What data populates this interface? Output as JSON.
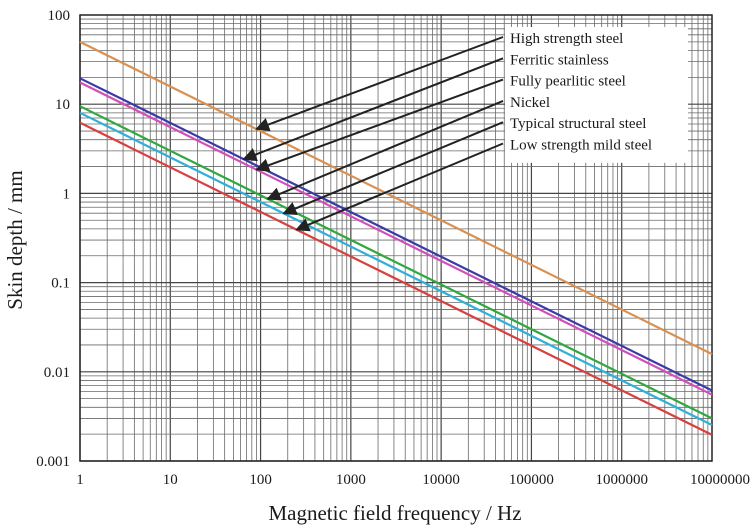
{
  "chart_data": {
    "type": "line",
    "xlabel": "Magnetic field frequency / Hz",
    "ylabel": "Skin depth / mm",
    "x_scale": "log",
    "y_scale": "log",
    "xlim": [
      1,
      10000000
    ],
    "ylim": [
      0.001,
      100
    ],
    "x_ticks": [
      "1",
      "10",
      "100",
      "1000",
      "10000",
      "100000",
      "1000000",
      "10000000"
    ],
    "y_ticks": [
      "0.001",
      "0.01",
      "0.1",
      "1",
      "10",
      "100"
    ],
    "grid": true,
    "legend_position": "top-right",
    "series": [
      {
        "name": "High strength steel",
        "color": "#d99050",
        "x": [
          1,
          10000000
        ],
        "y": [
          50,
          0.0158
        ],
        "label_target_x": 90
      },
      {
        "name": "Ferritic stainless",
        "color": "#3a3aa8",
        "x": [
          1,
          10000000
        ],
        "y": [
          19.5,
          0.00617
        ],
        "label_target_x": 65
      },
      {
        "name": "Fully pearlitic steel",
        "color": "#d050b8",
        "x": [
          1,
          10000000
        ],
        "y": [
          17.5,
          0.00553
        ],
        "label_target_x": 90
      },
      {
        "name": "Nickel",
        "color": "#30a840",
        "x": [
          1,
          10000000
        ],
        "y": [
          9.5,
          0.003
        ],
        "label_target_x": 120
      },
      {
        "name": "Typical structural steel",
        "color": "#30b0d8",
        "x": [
          1,
          10000000
        ],
        "y": [
          8,
          0.00253
        ],
        "label_target_x": 180
      },
      {
        "name": "Low strength mild steel",
        "color": "#d84040",
        "x": [
          1,
          10000000
        ],
        "y": [
          6.2,
          0.00196
        ],
        "label_target_x": 250
      }
    ]
  }
}
